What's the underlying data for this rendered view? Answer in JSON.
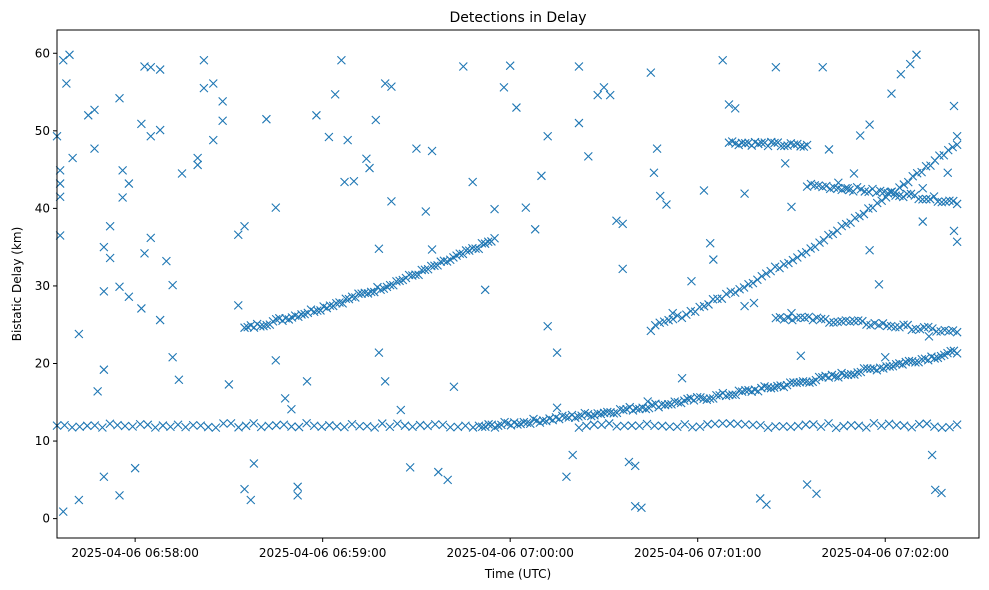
{
  "chart_data": {
    "type": "scatter",
    "title": "Detections in Delay",
    "xlabel": "Time (UTC)",
    "ylabel": "Bistatic Delay (km)",
    "x_unit": "UTC time (HH:MM:SS on 2025-04-06)",
    "xlim": [
      "06:57:35",
      "07:02:30"
    ],
    "ylim": [
      -2.5,
      63
    ],
    "x_ticks": [
      {
        "time": "06:58:00",
        "label": "2025-04-06 06:58:00"
      },
      {
        "time": "06:59:00",
        "label": "2025-04-06 06:59:00"
      },
      {
        "time": "07:00:00",
        "label": "2025-04-06 07:00:00"
      },
      {
        "time": "07:01:00",
        "label": "2025-04-06 07:01:00"
      },
      {
        "time": "07:02:00",
        "label": "2025-04-06 07:02:00"
      }
    ],
    "y_ticks": [
      0,
      10,
      20,
      30,
      40,
      50,
      60
    ],
    "grid": false,
    "marker": "x",
    "color": "#1f77b4",
    "tracks": [
      {
        "x_start": "06:57:35",
        "x_end": "07:02:23",
        "y_start": 12.0,
        "y_end": 12.0,
        "gap": [
          "06:59:50",
          "07:00:20"
        ],
        "n": 120
      },
      {
        "x_start": "06:58:35",
        "x_end": "06:59:55",
        "y_start": 24.5,
        "y_end": 36.0,
        "n": 80
      },
      {
        "x_start": "06:59:50",
        "x_end": "07:02:23",
        "y_start": 11.8,
        "y_end": 21.5,
        "n": 150
      },
      {
        "x_start": "07:00:45",
        "x_end": "07:02:23",
        "y_start": 24.5,
        "y_end": 48.5,
        "n": 70
      },
      {
        "x_start": "07:01:10",
        "x_end": "07:01:35",
        "y_start": 48.5,
        "y_end": 48.0,
        "n": 25
      },
      {
        "x_start": "07:01:35",
        "x_end": "07:02:23",
        "y_start": 43.0,
        "y_end": 40.8,
        "n": 40
      },
      {
        "x_start": "07:01:25",
        "x_end": "07:02:23",
        "y_start": 26.0,
        "y_end": 24.0,
        "n": 45
      }
    ],
    "scatter_points": [
      [
        "06:57:35",
        49.3
      ],
      [
        "06:57:36",
        44.9
      ],
      [
        "06:57:36",
        43.2
      ],
      [
        "06:57:36",
        41.5
      ],
      [
        "06:57:36",
        36.5
      ],
      [
        "06:57:37",
        59.1
      ],
      [
        "06:57:38",
        56.1
      ],
      [
        "06:57:39",
        59.8
      ],
      [
        "06:57:40",
        46.5
      ],
      [
        "06:57:42",
        23.8
      ],
      [
        "06:57:37",
        0.9
      ],
      [
        "06:57:42",
        2.4
      ],
      [
        "06:57:45",
        52.0
      ],
      [
        "06:57:47",
        52.7
      ],
      [
        "06:57:47",
        47.7
      ],
      [
        "06:57:50",
        29.3
      ],
      [
        "06:57:50",
        35.0
      ],
      [
        "06:57:52",
        33.6
      ],
      [
        "06:57:50",
        19.2
      ],
      [
        "06:57:48",
        16.4
      ],
      [
        "06:57:52",
        37.7
      ],
      [
        "06:57:55",
        54.2
      ],
      [
        "06:57:56",
        44.9
      ],
      [
        "06:57:56",
        41.4
      ],
      [
        "06:57:58",
        43.2
      ],
      [
        "06:58:03",
        58.3
      ],
      [
        "06:58:05",
        58.2
      ],
      [
        "06:58:08",
        57.9
      ],
      [
        "06:58:02",
        50.9
      ],
      [
        "06:58:05",
        49.3
      ],
      [
        "06:58:08",
        50.1
      ],
      [
        "06:58:05",
        36.2
      ],
      [
        "06:58:03",
        34.2
      ],
      [
        "06:58:10",
        33.2
      ],
      [
        "06:58:12",
        30.1
      ],
      [
        "06:58:08",
        25.6
      ],
      [
        "06:58:02",
        27.1
      ],
      [
        "06:57:58",
        28.6
      ],
      [
        "06:57:55",
        29.9
      ],
      [
        "06:58:00",
        6.5
      ],
      [
        "06:57:55",
        3.0
      ],
      [
        "06:57:50",
        5.4
      ],
      [
        "06:58:12",
        20.8
      ],
      [
        "06:58:14",
        17.9
      ],
      [
        "06:58:15",
        44.5
      ],
      [
        "06:58:20",
        45.6
      ],
      [
        "06:58:20",
        46.5
      ],
      [
        "06:58:22",
        55.5
      ],
      [
        "06:58:22",
        59.1
      ],
      [
        "06:58:25",
        56.1
      ],
      [
        "06:58:25",
        48.8
      ],
      [
        "06:58:28",
        51.3
      ],
      [
        "06:58:28",
        53.8
      ],
      [
        "06:58:30",
        17.3
      ],
      [
        "06:58:33",
        36.6
      ],
      [
        "06:58:35",
        37.7
      ],
      [
        "06:58:33",
        27.5
      ],
      [
        "06:58:35",
        3.8
      ],
      [
        "06:58:37",
        2.4
      ],
      [
        "06:58:38",
        7.1
      ],
      [
        "06:58:42",
        51.5
      ],
      [
        "06:58:45",
        40.1
      ],
      [
        "06:58:45",
        20.4
      ],
      [
        "06:58:48",
        15.5
      ],
      [
        "06:58:50",
        14.1
      ],
      [
        "06:58:52",
        4.1
      ],
      [
        "06:58:52",
        3.0
      ],
      [
        "06:58:55",
        17.7
      ],
      [
        "06:58:58",
        52.0
      ],
      [
        "06:59:02",
        49.2
      ],
      [
        "06:59:04",
        54.7
      ],
      [
        "06:59:06",
        59.1
      ],
      [
        "06:59:07",
        43.4
      ],
      [
        "06:59:08",
        48.8
      ],
      [
        "06:59:10",
        43.5
      ],
      [
        "06:59:14",
        46.4
      ],
      [
        "06:59:15",
        45.2
      ],
      [
        "06:59:17",
        51.4
      ],
      [
        "06:59:20",
        56.1
      ],
      [
        "06:59:22",
        55.7
      ],
      [
        "06:59:22",
        40.9
      ],
      [
        "06:59:18",
        34.8
      ],
      [
        "06:59:18",
        21.4
      ],
      [
        "06:59:20",
        17.7
      ],
      [
        "06:59:25",
        14.0
      ],
      [
        "06:59:28",
        6.6
      ],
      [
        "06:59:30",
        47.7
      ],
      [
        "06:59:33",
        39.6
      ],
      [
        "06:59:35",
        47.4
      ],
      [
        "06:59:35",
        34.7
      ],
      [
        "06:59:37",
        6.0
      ],
      [
        "06:59:40",
        5.0
      ],
      [
        "06:59:42",
        17.0
      ],
      [
        "06:59:45",
        58.3
      ],
      [
        "06:59:48",
        43.4
      ],
      [
        "06:59:52",
        29.5
      ],
      [
        "06:59:55",
        39.9
      ],
      [
        "06:59:58",
        55.6
      ],
      [
        "07:00:00",
        58.4
      ],
      [
        "07:00:02",
        53.0
      ],
      [
        "07:00:05",
        40.1
      ],
      [
        "07:00:08",
        37.3
      ],
      [
        "07:00:10",
        44.2
      ],
      [
        "07:00:12",
        49.3
      ],
      [
        "07:00:12",
        24.8
      ],
      [
        "07:00:15",
        21.4
      ],
      [
        "07:00:15",
        14.3
      ],
      [
        "07:00:18",
        5.4
      ],
      [
        "07:00:20",
        8.2
      ],
      [
        "07:00:22",
        58.3
      ],
      [
        "07:00:22",
        51.0
      ],
      [
        "07:00:25",
        46.7
      ],
      [
        "07:00:28",
        54.6
      ],
      [
        "07:00:30",
        55.6
      ],
      [
        "07:00:32",
        54.6
      ],
      [
        "07:00:34",
        38.4
      ],
      [
        "07:00:36",
        38.0
      ],
      [
        "07:00:36",
        32.2
      ],
      [
        "07:00:38",
        7.3
      ],
      [
        "07:00:40",
        6.8
      ],
      [
        "07:00:40",
        1.6
      ],
      [
        "07:00:42",
        1.4
      ],
      [
        "07:00:44",
        15.1
      ],
      [
        "07:00:45",
        57.5
      ],
      [
        "07:00:47",
        47.7
      ],
      [
        "07:00:46",
        44.6
      ],
      [
        "07:00:48",
        41.6
      ],
      [
        "07:00:50",
        40.5
      ],
      [
        "07:00:52",
        26.5
      ],
      [
        "07:00:55",
        18.1
      ],
      [
        "07:00:58",
        30.6
      ],
      [
        "07:01:02",
        42.3
      ],
      [
        "07:01:04",
        35.5
      ],
      [
        "07:01:05",
        33.4
      ],
      [
        "07:01:08",
        59.1
      ],
      [
        "07:01:10",
        53.4
      ],
      [
        "07:01:12",
        52.9
      ],
      [
        "07:01:15",
        41.9
      ],
      [
        "07:01:15",
        27.4
      ],
      [
        "07:01:18",
        27.8
      ],
      [
        "07:01:20",
        2.6
      ],
      [
        "07:01:22",
        1.8
      ],
      [
        "07:01:25",
        58.2
      ],
      [
        "07:01:28",
        45.8
      ],
      [
        "07:01:30",
        40.2
      ],
      [
        "07:01:30",
        26.5
      ],
      [
        "07:01:33",
        21.0
      ],
      [
        "07:01:35",
        4.4
      ],
      [
        "07:01:38",
        3.2
      ],
      [
        "07:01:40",
        58.2
      ],
      [
        "07:01:42",
        47.6
      ],
      [
        "07:01:45",
        43.3
      ],
      [
        "07:01:48",
        42.6
      ],
      [
        "07:01:50",
        44.5
      ],
      [
        "07:01:52",
        49.4
      ],
      [
        "07:01:55",
        50.8
      ],
      [
        "07:01:55",
        34.6
      ],
      [
        "07:01:58",
        30.2
      ],
      [
        "07:02:00",
        20.8
      ],
      [
        "07:02:02",
        54.8
      ],
      [
        "07:02:05",
        57.3
      ],
      [
        "07:02:08",
        58.6
      ],
      [
        "07:02:10",
        59.8
      ],
      [
        "07:02:12",
        42.6
      ],
      [
        "07:02:12",
        38.3
      ],
      [
        "07:02:14",
        23.5
      ],
      [
        "07:02:15",
        8.2
      ],
      [
        "07:02:16",
        3.7
      ],
      [
        "07:02:18",
        3.3
      ],
      [
        "07:02:20",
        44.6
      ],
      [
        "07:02:22",
        53.2
      ],
      [
        "07:02:22",
        37.1
      ],
      [
        "07:02:23",
        49.3
      ],
      [
        "07:02:23",
        35.7
      ]
    ]
  }
}
